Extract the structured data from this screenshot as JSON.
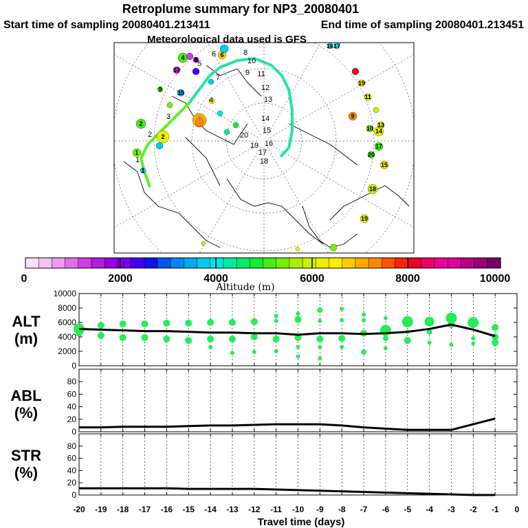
{
  "header": {
    "title": "Retroplume summary for NP3_20080401",
    "start_sampling": "Start time of sampling 20080401.213411",
    "end_sampling": "End time of sampling 20080401.213451",
    "met_data": "Meteorological data used is GFS"
  },
  "colorbar": {
    "label": "Altitude (m)",
    "ticks": [
      "0",
      "2000",
      "4000",
      "6000",
      "8000",
      "10000"
    ],
    "colors": [
      "#ffe0ff",
      "#f6c2f6",
      "#ee9bef",
      "#e36fe8",
      "#cc3fe0",
      "#b21ed9",
      "#9900dd",
      "#7700e6",
      "#4400ee",
      "#1111ee",
      "#0055ee",
      "#0088ee",
      "#00aaee",
      "#00ccee",
      "#00e6e6",
      "#00ee99",
      "#00ee66",
      "#11ee33",
      "#44ee11",
      "#77ee00",
      "#aaee00",
      "#ccee00",
      "#eeee00",
      "#ffee00",
      "#ffcc00",
      "#ffaa00",
      "#ff8800",
      "#ff5500",
      "#ff2200",
      "#ee0022",
      "#ee0066",
      "#ee0099",
      "#dd0099",
      "#bb0088",
      "#990077",
      "#770066"
    ]
  },
  "map": {
    "latitude_ring_labels": [
      "12",
      "13",
      "15",
      "16",
      "17",
      "18"
    ],
    "point_labels": [
      "1",
      "2",
      "3",
      "4",
      "5",
      "6",
      "7",
      "8",
      "9",
      "10",
      "11",
      "12",
      "13",
      "14",
      "15",
      "16",
      "17",
      "18",
      "19",
      "20"
    ]
  },
  "chart_data": [
    {
      "type": "line",
      "id": "alt",
      "ylabel_line1": "ALT",
      "ylabel_line2": "(m)",
      "ylim": [
        0,
        10000
      ],
      "yticks": [
        "0",
        "2000",
        "4000",
        "6000",
        "8000",
        "10000"
      ],
      "x": [
        -20,
        -19,
        -18,
        -17,
        -16,
        -15,
        -14,
        -13,
        -12,
        -11,
        -10,
        -9,
        -8,
        -7,
        -6,
        -5,
        -4,
        -3,
        -2,
        -1
      ],
      "values": [
        5100,
        5000,
        4900,
        4800,
        4800,
        4700,
        4600,
        4600,
        4500,
        4500,
        4300,
        4500,
        4500,
        4400,
        4500,
        4700,
        5100,
        5700,
        5000,
        4100
      ],
      "cluster_dots": [
        {
          "x": -20,
          "y": 5100,
          "r": 8
        },
        {
          "x": -20,
          "y": 4500,
          "r": 5
        },
        {
          "x": -19,
          "y": 5600,
          "r": 5
        },
        {
          "x": -19,
          "y": 4200,
          "r": 5
        },
        {
          "x": -18,
          "y": 5800,
          "r": 5
        },
        {
          "x": -18,
          "y": 3900,
          "r": 5
        },
        {
          "x": -17,
          "y": 5800,
          "r": 5
        },
        {
          "x": -17,
          "y": 3900,
          "r": 5
        },
        {
          "x": -16,
          "y": 5900,
          "r": 5
        },
        {
          "x": -16,
          "y": 3700,
          "r": 5
        },
        {
          "x": -15,
          "y": 5900,
          "r": 5
        },
        {
          "x": -15,
          "y": 3500,
          "r": 5
        },
        {
          "x": -14,
          "y": 6000,
          "r": 5
        },
        {
          "x": -14,
          "y": 3700,
          "r": 5
        },
        {
          "x": -14,
          "y": 2600,
          "r": 3
        },
        {
          "x": -13,
          "y": 6000,
          "r": 5
        },
        {
          "x": -13,
          "y": 3700,
          "r": 5
        },
        {
          "x": -13,
          "y": 1800,
          "r": 3
        },
        {
          "x": -12,
          "y": 6100,
          "r": 5
        },
        {
          "x": -12,
          "y": 4000,
          "r": 5
        },
        {
          "x": -12,
          "y": 1900,
          "r": 3
        },
        {
          "x": -11,
          "y": 6200,
          "r": 3
        },
        {
          "x": -11,
          "y": 6900,
          "r": 3
        },
        {
          "x": -11,
          "y": 3700,
          "r": 5
        },
        {
          "x": -11,
          "y": 2000,
          "r": 3
        },
        {
          "x": -10,
          "y": 6400,
          "r": 5
        },
        {
          "x": -10,
          "y": 7200,
          "r": 3
        },
        {
          "x": -10,
          "y": 3900,
          "r": 5
        },
        {
          "x": -10,
          "y": 2600,
          "r": 3
        },
        {
          "x": -10,
          "y": 1300,
          "r": 3
        },
        {
          "x": -9,
          "y": 7700,
          "r": 4
        },
        {
          "x": -9,
          "y": 6200,
          "r": 3
        },
        {
          "x": -9,
          "y": 3700,
          "r": 5
        },
        {
          "x": -9,
          "y": 2600,
          "r": 3
        },
        {
          "x": -9,
          "y": 1000,
          "r": 3
        },
        {
          "x": -8,
          "y": 7900,
          "r": 3
        },
        {
          "x": -8,
          "y": 6300,
          "r": 3
        },
        {
          "x": -8,
          "y": 3800,
          "r": 5
        },
        {
          "x": -8,
          "y": 2600,
          "r": 3
        },
        {
          "x": -7,
          "y": 7100,
          "r": 3
        },
        {
          "x": -7,
          "y": 6300,
          "r": 3
        },
        {
          "x": -7,
          "y": 4500,
          "r": 5
        },
        {
          "x": -7,
          "y": 1900,
          "r": 4
        },
        {
          "x": -6,
          "y": 6600,
          "r": 3
        },
        {
          "x": -6,
          "y": 4900,
          "r": 8
        },
        {
          "x": -6,
          "y": 3800,
          "r": 4
        },
        {
          "x": -6,
          "y": 2400,
          "r": 3
        },
        {
          "x": -5,
          "y": 6100,
          "r": 8
        },
        {
          "x": -5,
          "y": 4700,
          "r": 3
        },
        {
          "x": -5,
          "y": 3500,
          "r": 5
        },
        {
          "x": -4,
          "y": 6100,
          "r": 7
        },
        {
          "x": -4,
          "y": 4700,
          "r": 4
        },
        {
          "x": -4,
          "y": 3200,
          "r": 3
        },
        {
          "x": -3,
          "y": 6600,
          "r": 8
        },
        {
          "x": -3,
          "y": 5700,
          "r": 5
        },
        {
          "x": -3,
          "y": 2900,
          "r": 3
        },
        {
          "x": -2,
          "y": 6000,
          "r": 8
        },
        {
          "x": -2,
          "y": 3800,
          "r": 3
        },
        {
          "x": -2,
          "y": 3100,
          "r": 3
        },
        {
          "x": -1,
          "y": 5300,
          "r": 5
        },
        {
          "x": -1,
          "y": 4000,
          "r": 5
        },
        {
          "x": -1,
          "y": 3200,
          "r": 5
        }
      ]
    },
    {
      "type": "line",
      "id": "abl",
      "ylabel_line1": "ABL",
      "ylabel_line2": "(%)",
      "ylim": [
        0,
        100
      ],
      "yticks": [
        "0",
        "20",
        "40",
        "60",
        "80"
      ],
      "x": [
        -20,
        -19,
        -18,
        -17,
        -16,
        -15,
        -14,
        -13,
        -12,
        -11,
        -10,
        -9,
        -8,
        -7,
        -6,
        -5,
        -4,
        -3,
        -2,
        -1
      ],
      "values": [
        7,
        7,
        8,
        8,
        8,
        9,
        10,
        10,
        11,
        12,
        12,
        12,
        10,
        7,
        5,
        3,
        3,
        3,
        12,
        21
      ]
    },
    {
      "type": "line",
      "id": "str",
      "ylabel_line1": "STR",
      "ylabel_line2": "(%)",
      "ylim": [
        0,
        100
      ],
      "yticks": [
        "0",
        "20",
        "40",
        "60",
        "80"
      ],
      "x": [
        -20,
        -19,
        -18,
        -17,
        -16,
        -15,
        -14,
        -13,
        -12,
        -11,
        -10,
        -9,
        -8,
        -7,
        -6,
        -5,
        -4,
        -3,
        -2,
        -1
      ],
      "values": [
        11,
        11,
        11,
        11,
        11,
        10,
        10,
        10,
        10,
        9,
        8,
        7,
        6,
        5,
        4,
        3,
        2,
        1,
        0,
        0
      ],
      "xlabel": "Travel time (days)",
      "xticks": [
        "-20",
        "-19",
        "-18",
        "-17",
        "-16",
        "-15",
        "-14",
        "-13",
        "-12",
        "-11",
        "-10",
        "-9",
        "-8",
        "-7",
        "-6",
        "-5",
        "-4",
        "-3",
        "-2",
        "-1",
        "0"
      ]
    }
  ]
}
